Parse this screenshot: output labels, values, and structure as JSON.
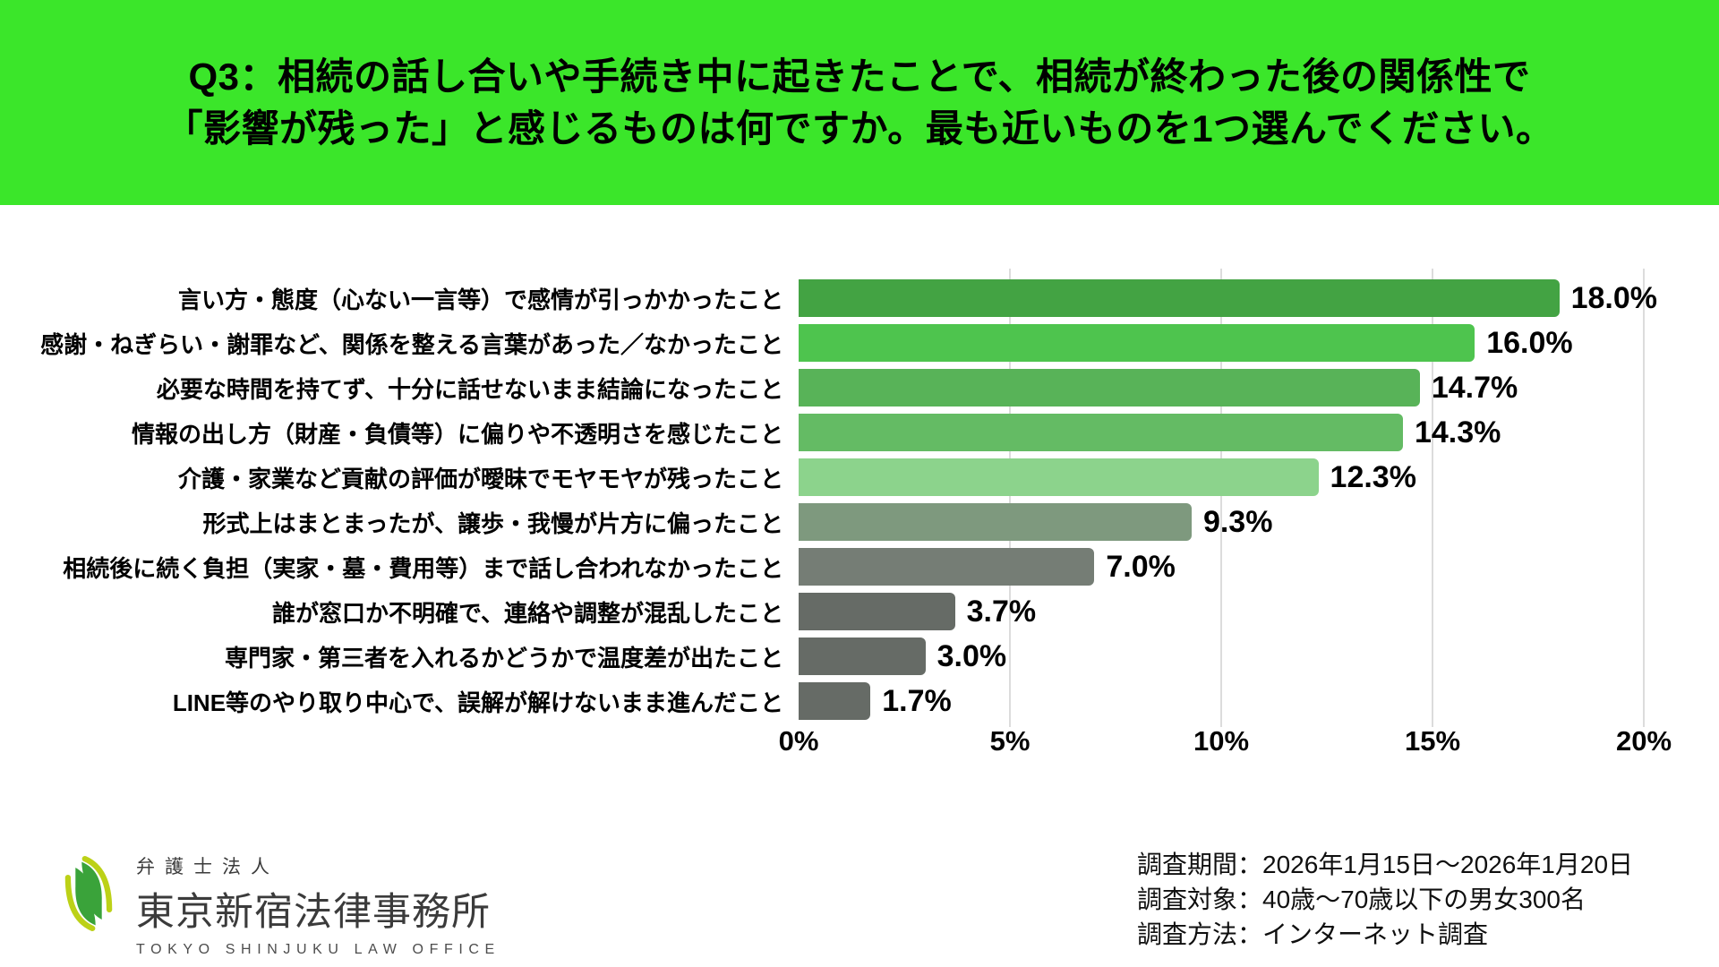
{
  "header": {
    "bg_color": "#3be62a",
    "line1": "Q3：相続の話し合いや手続き中に起きたことで、相続が終わった後の関係性で",
    "line2": "「影響が残った」と感じるものは何ですか。最も近いものを1つ選んでください。"
  },
  "chart_data": {
    "type": "bar",
    "orientation": "horizontal",
    "categories": [
      "言い方・態度（心ない一言等）で感情が引っかかったこと",
      "感謝・ねぎらい・謝罪など、関係を整える言葉があった／なかったこと",
      "必要な時間を持てず、十分に話せないまま結論になったこと",
      "情報の出し方（財産・負債等）に偏りや不透明さを感じたこと",
      "介護・家業など貢献の評価が曖昧でモヤモヤが残ったこと",
      "形式上はまとまったが、譲歩・我慢が片方に偏ったこと",
      "相続後に続く負担（実家・墓・費用等）まで話し合われなかったこと",
      "誰が窓口か不明確で、連絡や調整が混乱したこと",
      "専門家・第三者を入れるかどうかで温度差が出たこと",
      "LINE等のやり取り中心で、誤解が解けないまま進んだこと"
    ],
    "values": [
      18.0,
      16.0,
      14.7,
      14.3,
      12.3,
      9.3,
      7.0,
      3.7,
      3.0,
      1.7
    ],
    "value_labels": [
      "18.0%",
      "16.0%",
      "14.7%",
      "14.3%",
      "12.3%",
      "9.3%",
      "7.0%",
      "3.7%",
      "3.0%",
      "1.7%"
    ],
    "bar_colors": [
      "#43a343",
      "#4ec44e",
      "#58b358",
      "#64bb64",
      "#8cd38c",
      "#7e997e",
      "#757d75",
      "#666b66",
      "#666b66",
      "#666b66"
    ],
    "xlim": [
      0,
      20
    ],
    "x_ticks": [
      "0%",
      "5%",
      "10%",
      "15%",
      "20%"
    ],
    "x_tick_values": [
      0,
      5,
      10,
      15,
      20
    ],
    "grid": "vertical gridlines at 5%, 10%, 15%, 20%",
    "gridline_color": "#dcdcdc"
  },
  "footer": {
    "logo": {
      "firm_type": "弁護士法人",
      "name_jp": "東京新宿法律事務所",
      "name_en": "TOKYO SHINJUKU LAW OFFICE",
      "mark_green": "#3aa33a",
      "mark_yellow": "#bcd117"
    },
    "survey": {
      "period": "調査期間：2026年1月15日〜2026年1月20日",
      "target": "調査対象：40歳〜70歳以下の男女300名",
      "method": "調査方法：インターネット調査"
    }
  }
}
